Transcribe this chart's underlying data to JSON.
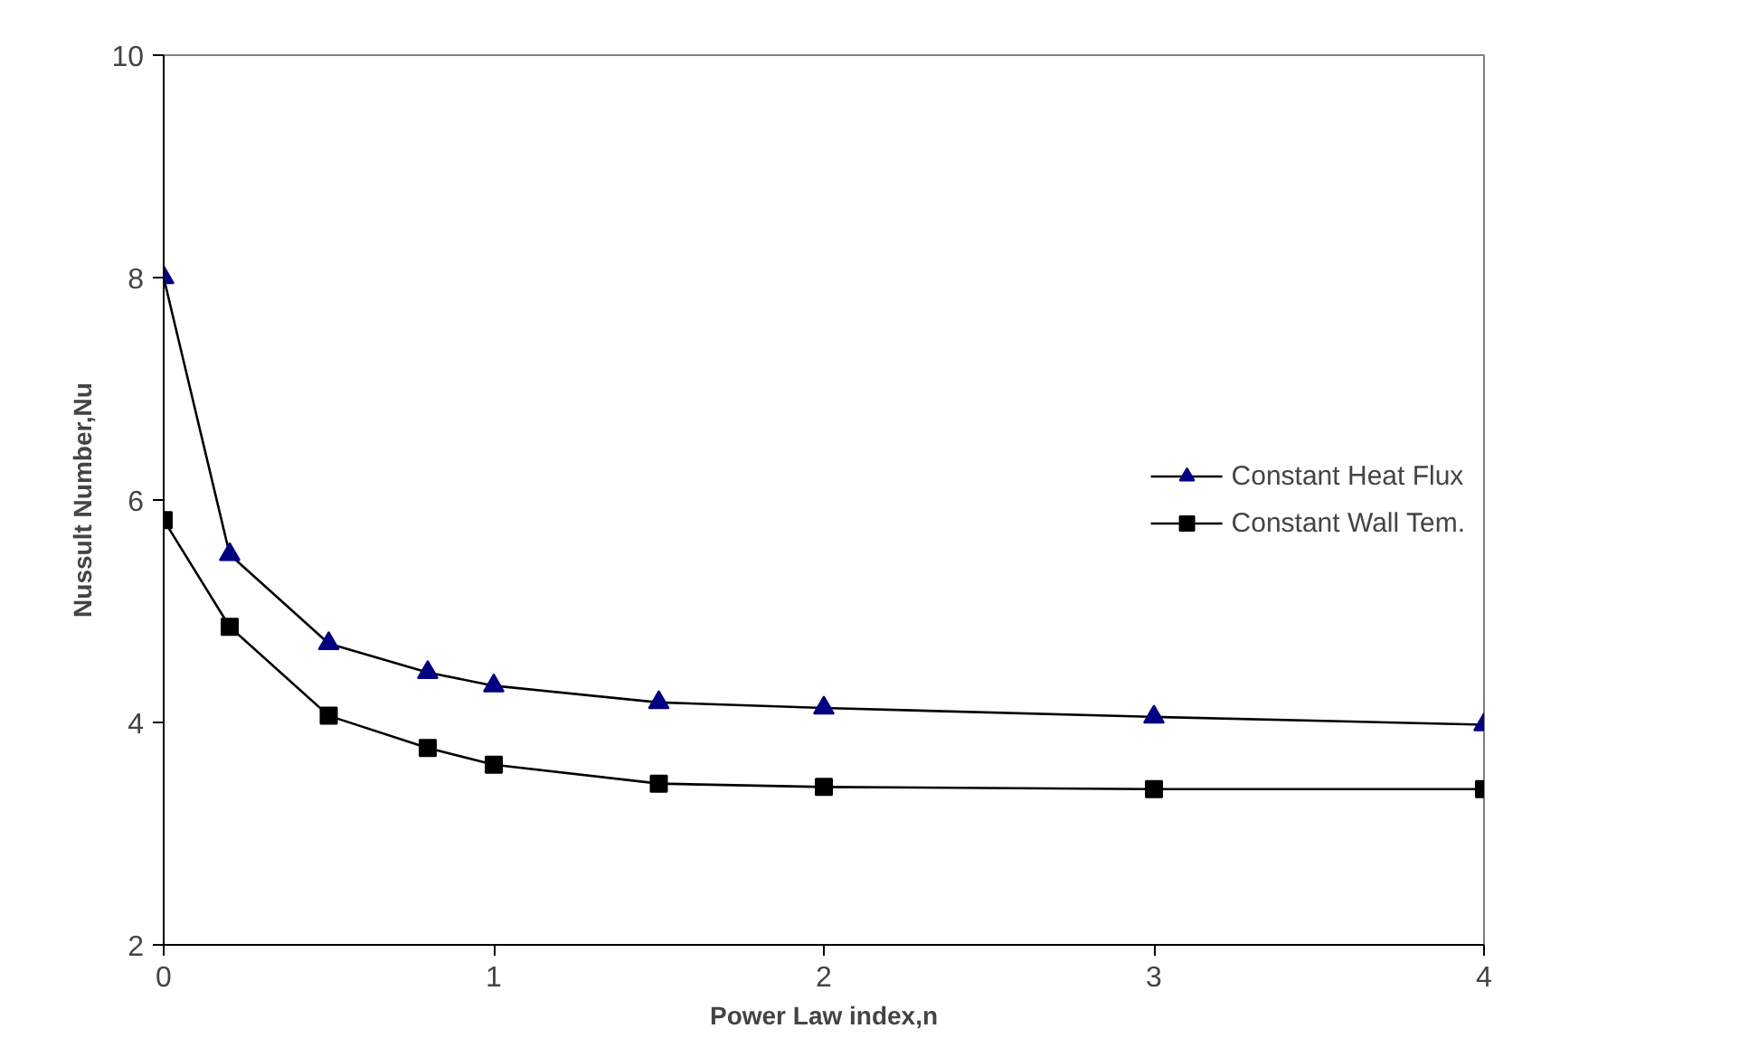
{
  "chart_data": {
    "type": "line",
    "xlabel": "Power Law index,n",
    "ylabel": "Nussult Number,Nu",
    "x": [
      0,
      0.2,
      0.5,
      0.8,
      1,
      1.5,
      2,
      3,
      4
    ],
    "series": [
      {
        "name": "Constant Heat Flux",
        "color": "#000080",
        "marker": "triangle",
        "values": [
          8.0,
          5.51,
          4.71,
          4.45,
          4.33,
          4.18,
          4.13,
          4.05,
          3.98
        ]
      },
      {
        "name": "Constant Wall Tem.",
        "color": "#000000",
        "marker": "square",
        "values": [
          5.82,
          4.86,
          4.06,
          3.77,
          3.62,
          3.45,
          3.42,
          3.4,
          3.4
        ]
      }
    ],
    "xlim": [
      0,
      4
    ],
    "ylim": [
      2,
      10
    ],
    "xticks": [
      0,
      1,
      2,
      3,
      4
    ],
    "yticks": [
      2,
      4,
      6,
      8,
      10
    ],
    "grid": false,
    "legend": "right",
    "line_style": "solid"
  }
}
